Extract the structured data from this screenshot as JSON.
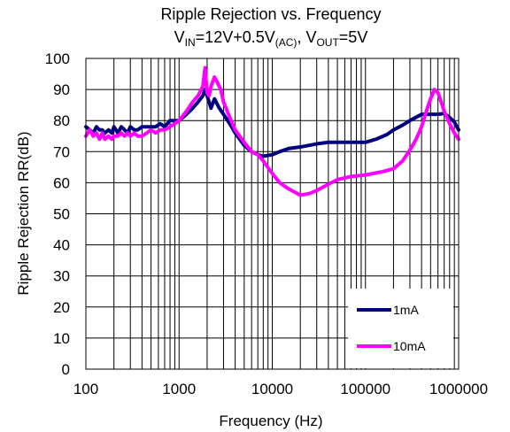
{
  "chart_data": {
    "type": "line",
    "title": "Ripple Rejection vs. Frequency",
    "subtitle": {
      "v_in_main": "V",
      "v_in_sub": "IN",
      "v_in_rest": "=12V+0.5V",
      "ac_sub": "(AC)",
      "separator": ", V",
      "v_out_sub": "OUT",
      "v_out_rest": "=5V"
    },
    "xlabel": "Frequency (Hz)",
    "ylabel": "Ripple Rejection RR(dB)",
    "x_scale": "log",
    "xlim": [
      100,
      1000000
    ],
    "ylim": [
      0,
      100
    ],
    "grid": true,
    "legend_position": "bottom-right",
    "x_tick_labels": [
      "100",
      "1000",
      "10000",
      "100000",
      "1000000"
    ],
    "x_tick_values": [
      100,
      1000,
      10000,
      100000,
      1000000
    ],
    "y_tick_labels": [
      "0",
      "10",
      "20",
      "30",
      "40",
      "50",
      "60",
      "70",
      "80",
      "90",
      "100"
    ],
    "y_tick_values": [
      0,
      10,
      20,
      30,
      40,
      50,
      60,
      70,
      80,
      90,
      100
    ],
    "series": [
      {
        "name": "1mA",
        "color": "#000080",
        "x": [
          100,
          110,
          120,
          130,
          140,
          150,
          160,
          175,
          190,
          200,
          220,
          240,
          260,
          280,
          300,
          330,
          360,
          400,
          450,
          500,
          560,
          630,
          700,
          800,
          900,
          1000,
          1200,
          1400,
          1600,
          1800,
          1900,
          2000,
          2200,
          2400,
          2700,
          3000,
          3500,
          4000,
          5000,
          6000,
          7000,
          8000,
          9000,
          10000,
          12000,
          15000,
          20000,
          30000,
          40000,
          50000,
          70000,
          100000,
          130000,
          170000,
          200000,
          250000,
          300000,
          400000,
          500000,
          600000,
          700000,
          800000,
          900000,
          1000000
        ],
        "y": [
          78,
          77,
          76,
          78,
          77,
          77,
          76,
          77,
          76,
          78,
          76,
          78,
          77,
          76,
          78,
          77,
          77,
          78,
          78,
          78,
          78,
          79,
          78,
          80,
          80,
          80,
          82,
          84,
          86,
          88,
          90,
          88,
          84,
          87,
          84,
          82,
          79,
          76,
          72,
          70,
          69,
          68.5,
          68.8,
          69,
          70,
          71,
          71.5,
          72.5,
          73,
          73,
          73,
          73,
          74,
          75.5,
          77,
          78.5,
          80,
          82,
          82,
          82,
          82.3,
          81,
          79.5,
          77
        ]
      },
      {
        "name": "10mA",
        "color": "#ff00ff",
        "x": [
          100,
          110,
          120,
          130,
          140,
          150,
          160,
          175,
          190,
          200,
          220,
          240,
          260,
          280,
          300,
          330,
          360,
          400,
          450,
          500,
          560,
          630,
          700,
          800,
          900,
          1000,
          1200,
          1400,
          1600,
          1800,
          1900,
          2000,
          2100,
          2200,
          2400,
          2600,
          2800,
          3000,
          3500,
          4000,
          5000,
          6000,
          7000,
          8000,
          10000,
          12000,
          15000,
          20000,
          25000,
          30000,
          40000,
          50000,
          70000,
          100000,
          150000,
          200000,
          250000,
          300000,
          350000,
          400000,
          450000,
          500000,
          550000,
          600000,
          650000,
          700000,
          800000,
          900000,
          1000000
        ],
        "y": [
          75,
          77,
          75,
          76,
          74,
          76,
          74,
          75,
          74,
          75,
          75,
          76,
          75,
          76,
          75,
          76,
          75,
          75,
          76,
          77,
          76,
          77,
          77,
          78,
          79,
          80,
          83,
          86,
          88,
          91,
          97,
          89,
          88,
          91,
          94,
          92,
          90,
          86,
          81,
          77,
          73,
          70,
          69,
          67,
          63,
          60,
          58,
          56,
          56.5,
          57.5,
          59.5,
          61,
          62,
          62.5,
          63.5,
          64.5,
          67,
          70.5,
          74,
          78,
          83,
          87,
          90,
          89,
          86,
          83,
          79,
          76,
          74
        ]
      }
    ]
  }
}
